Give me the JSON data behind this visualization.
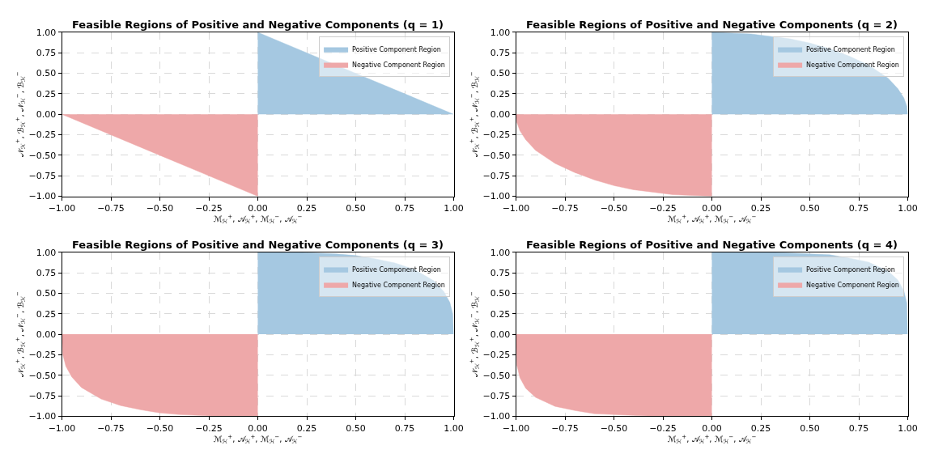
{
  "chart_data": [
    {
      "type": "area",
      "title": "Feasible Regions of Positive and Negative Components (q = 1)",
      "xlabel": "ℳ$_{ℋ}$$^{+}$, 𝒜$_{ℋ}$$^{+}$, ℳ$_{ℋ}$$^{−}$, 𝒜$_{ℋ}$$^{−}$",
      "ylabel": "𝒩$_{ℋ}$$^{+}$, ℬ$_{ℋ}$$^{+}$, 𝒩$_{ℋ}$$^{−}$, ℬ$_{ℋ}$$^{−}$",
      "xlim": [
        -1,
        1
      ],
      "ylim": [
        -1,
        1
      ],
      "xticks": [
        {
          "value": -1,
          "label": "−1.00"
        },
        {
          "value": -0.75,
          "label": "−0.75"
        },
        {
          "value": -0.5,
          "label": "−0.50"
        },
        {
          "value": -0.25,
          "label": "−0.25"
        },
        {
          "value": 0,
          "label": "0.00"
        },
        {
          "value": 0.25,
          "label": "0.25"
        },
        {
          "value": 0.5,
          "label": "0.50"
        },
        {
          "value": 0.75,
          "label": "0.75"
        },
        {
          "value": 1,
          "label": "1.00"
        }
      ],
      "yticks": [
        {
          "value": -1,
          "label": "−1.00"
        },
        {
          "value": -0.75,
          "label": "−0.75"
        },
        {
          "value": -0.5,
          "label": "−0.50"
        },
        {
          "value": -0.25,
          "label": "−0.25"
        },
        {
          "value": 0,
          "label": "0.00"
        },
        {
          "value": 0.25,
          "label": "0.25"
        },
        {
          "value": 0.5,
          "label": "0.50"
        },
        {
          "value": 0.75,
          "label": "0.75"
        },
        {
          "value": 1,
          "label": "1.00"
        }
      ],
      "grid": true,
      "legend": "top right",
      "series": [
        {
          "name": "Positive Component Region",
          "color": "#a5c8e1",
          "x": [
            0,
            0.5,
            1
          ],
          "values": [
            1,
            0.5,
            0
          ]
        },
        {
          "name": "Negative Component Region",
          "color": "#eea8a9",
          "x": [
            -1,
            -0.5,
            0
          ],
          "values": [
            0,
            -0.5,
            -1
          ]
        }
      ]
    },
    {
      "type": "area",
      "title": "Feasible Regions of Positive and Negative Components (q = 2)",
      "xlabel": "ℳ$_{ℋ}$$^{+}$, 𝒜$_{ℋ}$$^{+}$, ℳ$_{ℋ}$$^{−}$, 𝒜$_{ℋ}$$^{−}$",
      "ylabel": "𝒩$_{ℋ}$$^{+}$, ℬ$_{ℋ}$$^{+}$, 𝒩$_{ℋ}$$^{−}$, ℬ$_{ℋ}$$^{−}$",
      "xlim": [
        -1,
        1
      ],
      "ylim": [
        -1,
        1
      ],
      "xticks": [
        {
          "value": -1,
          "label": "−1.00"
        },
        {
          "value": -0.75,
          "label": "−0.75"
        },
        {
          "value": -0.5,
          "label": "−0.50"
        },
        {
          "value": -0.25,
          "label": "−0.25"
        },
        {
          "value": 0,
          "label": "0.00"
        },
        {
          "value": 0.25,
          "label": "0.25"
        },
        {
          "value": 0.5,
          "label": "0.50"
        },
        {
          "value": 0.75,
          "label": "0.75"
        },
        {
          "value": 1,
          "label": "1.00"
        }
      ],
      "yticks": [
        {
          "value": -1,
          "label": "−1.00"
        },
        {
          "value": -0.75,
          "label": "−0.75"
        },
        {
          "value": -0.5,
          "label": "−0.50"
        },
        {
          "value": -0.25,
          "label": "−0.25"
        },
        {
          "value": 0,
          "label": "0.00"
        },
        {
          "value": 0.25,
          "label": "0.25"
        },
        {
          "value": 0.5,
          "label": "0.50"
        },
        {
          "value": 0.75,
          "label": "0.75"
        },
        {
          "value": 1,
          "label": "1.00"
        }
      ],
      "grid": true,
      "legend": "top right",
      "series": [
        {
          "name": "Positive Component Region",
          "color": "#a5c8e1",
          "x": [
            0,
            0.1,
            0.2,
            0.3,
            0.4,
            0.5,
            0.6,
            0.7,
            0.8,
            0.9,
            0.95,
            0.98,
            0.995,
            1
          ],
          "values": [
            1,
            0.99,
            0.98,
            0.95,
            0.92,
            0.87,
            0.8,
            0.71,
            0.6,
            0.44,
            0.31,
            0.2,
            0.1,
            0
          ]
        },
        {
          "name": "Negative Component Region",
          "color": "#eea8a9",
          "x": [
            -1,
            -0.995,
            -0.98,
            -0.95,
            -0.9,
            -0.8,
            -0.7,
            -0.6,
            -0.5,
            -0.4,
            -0.3,
            -0.2,
            -0.1,
            0
          ],
          "values": [
            0,
            -0.1,
            -0.2,
            -0.31,
            -0.44,
            -0.6,
            -0.71,
            -0.8,
            -0.87,
            -0.92,
            -0.95,
            -0.98,
            -0.99,
            -1
          ]
        }
      ]
    },
    {
      "type": "area",
      "title": "Feasible Regions of Positive and Negative Components (q = 3)",
      "xlabel": "ℳ$_{ℋ}$$^{+}$, 𝒜$_{ℋ}$$^{+}$, ℳ$_{ℋ}$$^{−}$, 𝒜$_{ℋ}$$^{−}$",
      "ylabel": "𝒩$_{ℋ}$$^{+}$, ℬ$_{ℋ}$$^{+}$, 𝒩$_{ℋ}$$^{−}$, ℬ$_{ℋ}$$^{−}$",
      "xlim": [
        -1,
        1
      ],
      "ylim": [
        -1,
        1
      ],
      "xticks": [
        {
          "value": -1,
          "label": "−1.00"
        },
        {
          "value": -0.75,
          "label": "−0.75"
        },
        {
          "value": -0.5,
          "label": "−0.50"
        },
        {
          "value": -0.25,
          "label": "−0.25"
        },
        {
          "value": 0,
          "label": "0.00"
        },
        {
          "value": 0.25,
          "label": "0.25"
        },
        {
          "value": 0.5,
          "label": "0.50"
        },
        {
          "value": 0.75,
          "label": "0.75"
        },
        {
          "value": 1,
          "label": "1.00"
        }
      ],
      "yticks": [
        {
          "value": -1,
          "label": "−1.00"
        },
        {
          "value": -0.75,
          "label": "−0.75"
        },
        {
          "value": -0.5,
          "label": "−0.50"
        },
        {
          "value": -0.25,
          "label": "−0.25"
        },
        {
          "value": 0,
          "label": "0.00"
        },
        {
          "value": 0.25,
          "label": "0.25"
        },
        {
          "value": 0.5,
          "label": "0.50"
        },
        {
          "value": 0.75,
          "label": "0.75"
        },
        {
          "value": 1,
          "label": "1.00"
        }
      ],
      "grid": true,
      "legend": "top right",
      "series": [
        {
          "name": "Positive Component Region",
          "color": "#a5c8e1",
          "x": [
            0,
            0.1,
            0.2,
            0.3,
            0.4,
            0.5,
            0.6,
            0.7,
            0.8,
            0.9,
            0.95,
            0.98,
            0.995,
            1
          ],
          "values": [
            1,
            1,
            1,
            0.99,
            0.98,
            0.96,
            0.92,
            0.87,
            0.79,
            0.65,
            0.52,
            0.39,
            0.25,
            0
          ]
        },
        {
          "name": "Negative Component Region",
          "color": "#eea8a9",
          "x": [
            -1,
            -0.995,
            -0.98,
            -0.95,
            -0.9,
            -0.8,
            -0.7,
            -0.6,
            -0.5,
            -0.4,
            -0.3,
            -0.2,
            -0.1,
            0
          ],
          "values": [
            0,
            -0.25,
            -0.39,
            -0.52,
            -0.65,
            -0.79,
            -0.87,
            -0.92,
            -0.96,
            -0.98,
            -0.99,
            -1,
            -1,
            -1
          ]
        }
      ]
    },
    {
      "type": "area",
      "title": "Feasible Regions of Positive and Negative Components (q = 4)",
      "xlabel": "ℳ$_{ℋ}$$^{+}$, 𝒜$_{ℋ}$$^{+}$, ℳ$_{ℋ}$$^{−}$, 𝒜$_{ℋ}$$^{−}$",
      "ylabel": "𝒩$_{ℋ}$$^{+}$, ℬ$_{ℋ}$$^{+}$, 𝒩$_{ℋ}$$^{−}$, ℬ$_{ℋ}$$^{−}$",
      "xlim": [
        -1,
        1
      ],
      "ylim": [
        -1,
        1
      ],
      "xticks": [
        {
          "value": -1,
          "label": "−1.00"
        },
        {
          "value": -0.75,
          "label": "−0.75"
        },
        {
          "value": -0.5,
          "label": "−0.50"
        },
        {
          "value": -0.25,
          "label": "−0.25"
        },
        {
          "value": 0,
          "label": "0.00"
        },
        {
          "value": 0.25,
          "label": "0.25"
        },
        {
          "value": 0.5,
          "label": "0.50"
        },
        {
          "value": 0.75,
          "label": "0.75"
        },
        {
          "value": 1,
          "label": "1.00"
        }
      ],
      "yticks": [
        {
          "value": -1,
          "label": "−1.00"
        },
        {
          "value": -0.75,
          "label": "−0.75"
        },
        {
          "value": -0.5,
          "label": "−0.50"
        },
        {
          "value": -0.25,
          "label": "−0.25"
        },
        {
          "value": 0,
          "label": "0.00"
        },
        {
          "value": 0.25,
          "label": "0.25"
        },
        {
          "value": 0.5,
          "label": "0.50"
        },
        {
          "value": 0.75,
          "label": "0.75"
        },
        {
          "value": 1,
          "label": "1.00"
        }
      ],
      "grid": true,
      "legend": "top right",
      "series": [
        {
          "name": "Positive Component Region",
          "color": "#a5c8e1",
          "x": [
            0,
            0.1,
            0.2,
            0.3,
            0.4,
            0.5,
            0.6,
            0.7,
            0.8,
            0.9,
            0.95,
            0.98,
            0.995,
            1
          ],
          "values": [
            1,
            1,
            1,
            1,
            0.99,
            0.98,
            0.97,
            0.93,
            0.88,
            0.77,
            0.66,
            0.53,
            0.38,
            0
          ]
        },
        {
          "name": "Negative Component Region",
          "color": "#eea8a9",
          "x": [
            -1,
            -0.995,
            -0.98,
            -0.95,
            -0.9,
            -0.8,
            -0.7,
            -0.6,
            -0.5,
            -0.4,
            -0.3,
            -0.2,
            -0.1,
            0
          ],
          "values": [
            0,
            -0.38,
            -0.53,
            -0.66,
            -0.77,
            -0.88,
            -0.93,
            -0.97,
            -0.98,
            -0.99,
            -1,
            -1,
            -1,
            -1
          ]
        }
      ]
    }
  ]
}
